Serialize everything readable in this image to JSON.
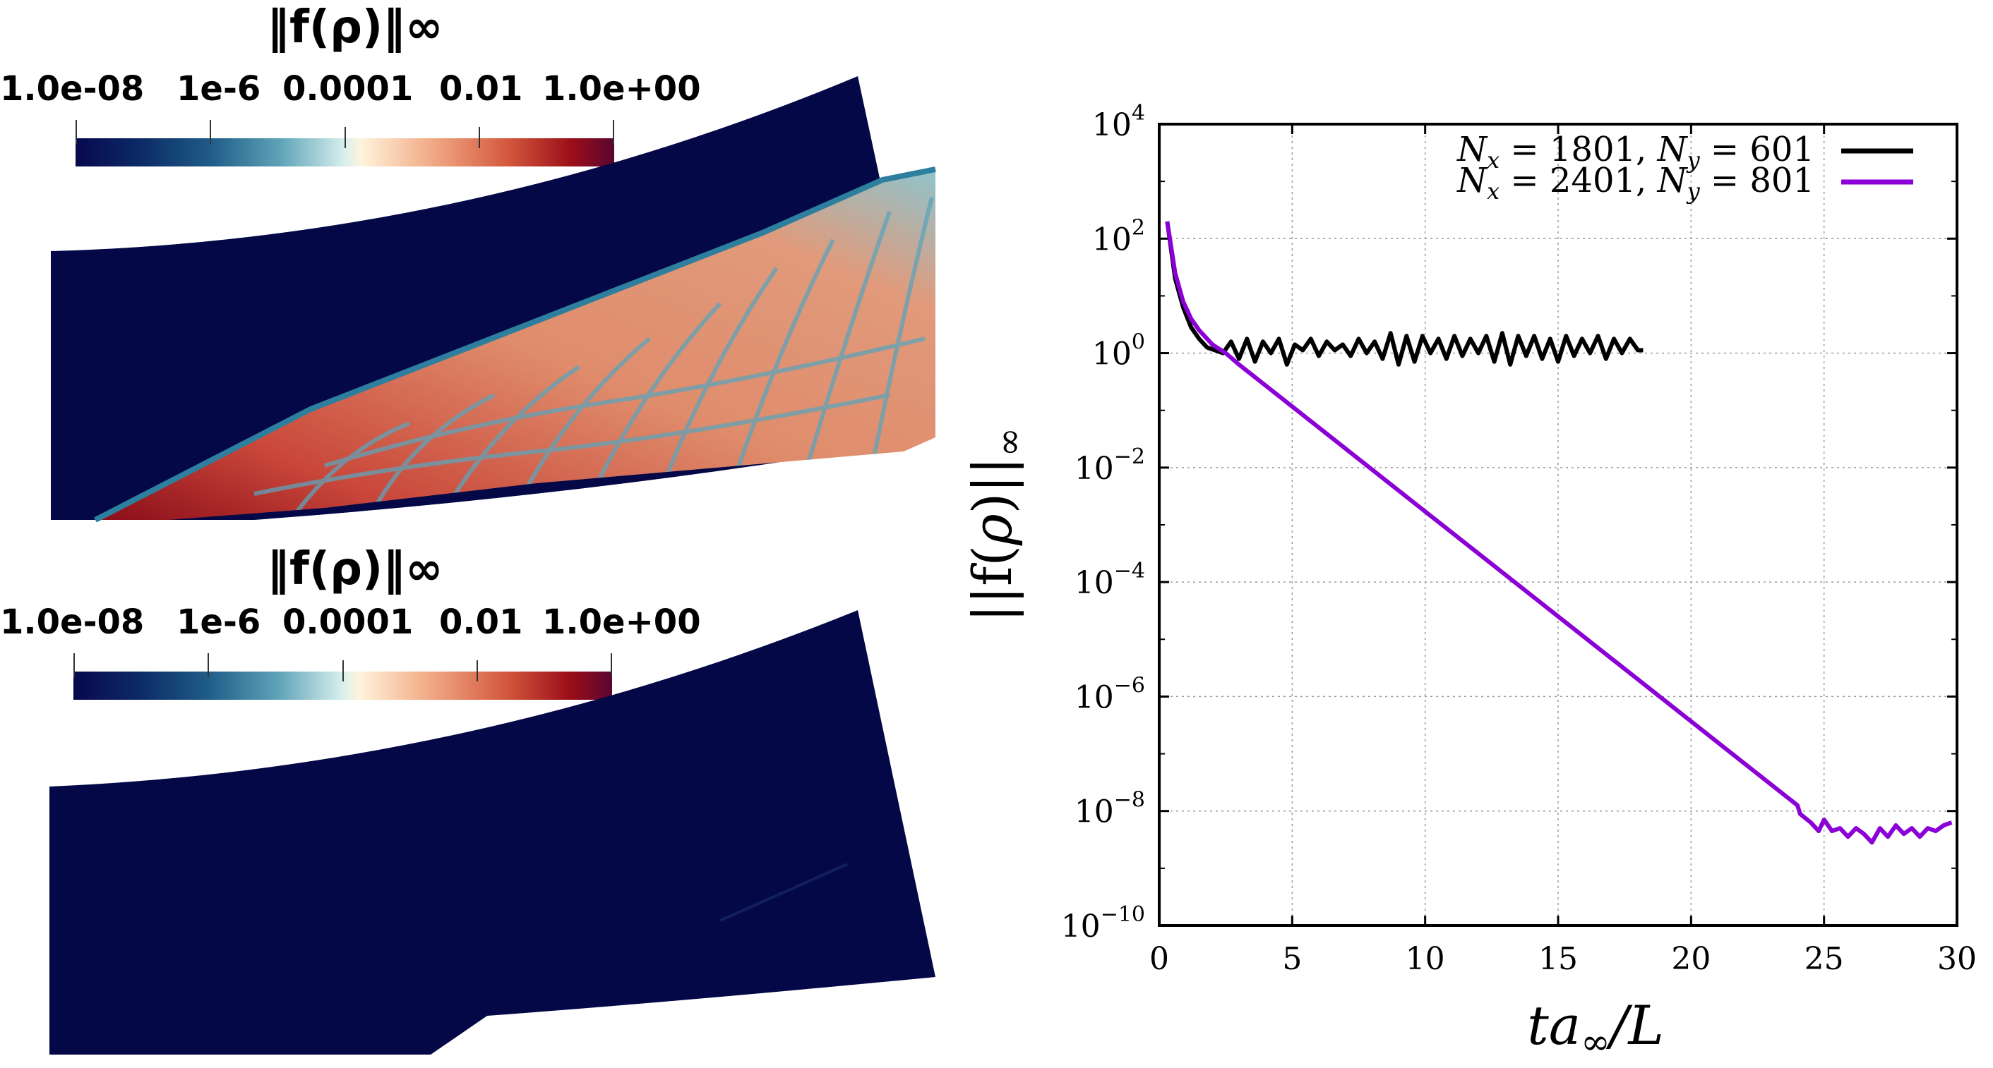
{
  "panels": [
    {
      "title": "‖f(ρ)‖∞",
      "tick_labels": [
        "1.0e-08",
        "1e-6",
        "0.0001",
        "0.01",
        "1.0e+00"
      ]
    },
    {
      "title": "‖f(ρ)‖∞",
      "tick_labels": [
        "1.0e-08",
        "1e-6",
        "0.0001",
        "0.01",
        "1.0e+00"
      ]
    }
  ],
  "colors": {
    "field_dark": "#040846",
    "series_1801": "#000000",
    "series_2401": "#8b00d6",
    "grid": "#999999"
  },
  "chart_data": {
    "type": "line",
    "xlabel": "ta∞/L",
    "ylabel": "||f(ρ)||∞",
    "xlim": [
      0,
      30
    ],
    "ylim_log10": [
      -10,
      4
    ],
    "x_ticks": [
      "0",
      "5",
      "10",
      "15",
      "20",
      "25",
      "30"
    ],
    "y_ticks": [
      "10",
      "10",
      "10",
      "10",
      "10",
      "10",
      "10",
      "10"
    ],
    "y_tick_exponents": [
      "−10",
      "−8",
      "−6",
      "−4",
      "−2",
      "0",
      "2",
      "4"
    ],
    "grid": true,
    "legend_position": "top-right",
    "series": [
      {
        "name": "N_x = 1801, N_y = 601",
        "legend_text": "Nx = 1801, Ny = 601",
        "color": "#000000",
        "x": [
          0.3,
          0.6,
          0.9,
          1.2,
          1.5,
          1.8,
          2.1,
          2.4,
          2.7,
          3.0,
          3.3,
          3.6,
          3.9,
          4.2,
          4.5,
          4.8,
          5.1,
          5.4,
          5.7,
          6.0,
          6.3,
          6.6,
          6.9,
          7.2,
          7.5,
          7.8,
          8.1,
          8.4,
          8.7,
          9.0,
          9.3,
          9.6,
          9.9,
          10.2,
          10.5,
          10.8,
          11.1,
          11.4,
          11.7,
          12.0,
          12.3,
          12.6,
          12.9,
          13.2,
          13.5,
          13.8,
          14.1,
          14.4,
          14.7,
          15.0,
          15.3,
          15.6,
          15.9,
          16.2,
          16.5,
          16.8,
          17.1,
          17.4,
          17.7,
          18.0,
          18.2
        ],
        "y_log10": [
          2.3,
          1.3,
          0.8,
          0.45,
          0.25,
          0.1,
          0.05,
          0.0,
          0.2,
          -0.1,
          0.25,
          -0.15,
          0.2,
          0.0,
          0.25,
          -0.2,
          0.15,
          0.05,
          0.25,
          -0.05,
          0.2,
          0.05,
          0.15,
          -0.05,
          0.25,
          0.0,
          0.2,
          -0.1,
          0.35,
          -0.2,
          0.3,
          -0.15,
          0.3,
          0.0,
          0.25,
          -0.1,
          0.3,
          -0.05,
          0.25,
          0.0,
          0.3,
          -0.15,
          0.35,
          -0.2,
          0.3,
          -0.05,
          0.3,
          -0.1,
          0.25,
          -0.15,
          0.3,
          -0.05,
          0.25,
          0.0,
          0.3,
          -0.1,
          0.25,
          0.0,
          0.25,
          0.05,
          0.05
        ]
      },
      {
        "name": "N_x = 2401, N_y = 801",
        "legend_text": "Nx = 2401, Ny = 801",
        "color": "#8b00d6",
        "x": [
          0.3,
          0.6,
          0.9,
          1.2,
          1.5,
          2.0,
          2.5,
          3.0,
          24.0,
          24.1,
          24.5,
          24.8,
          25.0,
          25.3,
          25.6,
          25.9,
          26.2,
          26.5,
          26.8,
          27.1,
          27.4,
          27.7,
          28.0,
          28.3,
          28.6,
          28.9,
          29.2,
          29.5,
          29.8
        ],
        "y_log10": [
          2.3,
          1.4,
          0.9,
          0.6,
          0.4,
          0.15,
          0.0,
          -0.2,
          -7.9,
          -8.05,
          -8.2,
          -8.35,
          -8.15,
          -8.35,
          -8.3,
          -8.45,
          -8.3,
          -8.4,
          -8.55,
          -8.3,
          -8.45,
          -8.25,
          -8.4,
          -8.3,
          -8.45,
          -8.3,
          -8.35,
          -8.25,
          -8.2
        ]
      }
    ]
  }
}
